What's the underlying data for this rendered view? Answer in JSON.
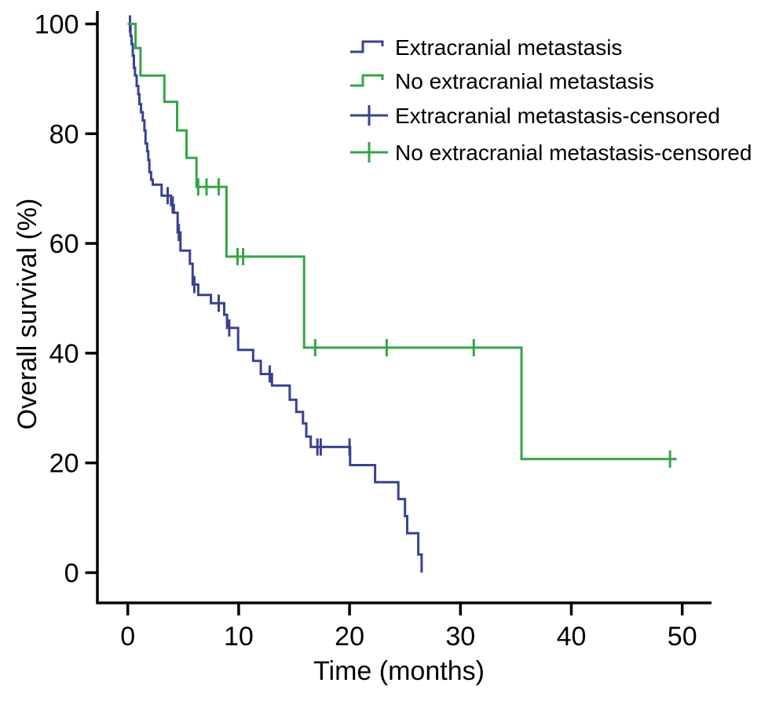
{
  "chart_data": {
    "type": "line",
    "subtype": "kaplan-meier-step-survival",
    "title": "",
    "xlabel": "Time (months)",
    "ylabel": "Overall survival (%)",
    "xlim": [
      0,
      50
    ],
    "ylim": [
      0,
      100
    ],
    "x_ticks": [
      0,
      10,
      20,
      30,
      40,
      50
    ],
    "y_ticks": [
      0,
      20,
      40,
      60,
      80,
      100
    ],
    "grid": false,
    "legend_position": "top-right",
    "axis_color": "#000000",
    "series": [
      {
        "name": "Extracranial metastasis",
        "color": "#3a428e",
        "points": [
          [
            0,
            100
          ],
          [
            0.25,
            97.8
          ],
          [
            0.35,
            96.3
          ],
          [
            0.45,
            94.2
          ],
          [
            0.55,
            92.0
          ],
          [
            0.65,
            90.6
          ],
          [
            0.8,
            88.7
          ],
          [
            0.95,
            87.2
          ],
          [
            1.05,
            85.4
          ],
          [
            1.2,
            83.9
          ],
          [
            1.35,
            82.4
          ],
          [
            1.5,
            80.6
          ],
          [
            1.6,
            78.2
          ],
          [
            1.75,
            76.8
          ],
          [
            1.85,
            75.2
          ],
          [
            1.95,
            73.0
          ],
          [
            2.1,
            71.6
          ],
          [
            2.25,
            70.7
          ],
          [
            3.05,
            68.7
          ],
          [
            3.9,
            67.0
          ],
          [
            4.15,
            65.6
          ],
          [
            4.5,
            62.0
          ],
          [
            4.75,
            58.7
          ],
          [
            5.6,
            56.3
          ],
          [
            5.85,
            52.5
          ],
          [
            6.35,
            50.6
          ],
          [
            7.5,
            49.1
          ],
          [
            8.7,
            47.0
          ],
          [
            8.95,
            44.6
          ],
          [
            9.95,
            40.6
          ],
          [
            11.3,
            38.6
          ],
          [
            12.0,
            36.2
          ],
          [
            13.0,
            34.1
          ],
          [
            14.6,
            31.5
          ],
          [
            15.2,
            29.3
          ],
          [
            15.8,
            27.2
          ],
          [
            16.1,
            24.8
          ],
          [
            16.5,
            22.9
          ],
          [
            20.05,
            19.6
          ],
          [
            22.3,
            16.5
          ],
          [
            24.4,
            13.4
          ],
          [
            25.0,
            10.3
          ],
          [
            25.2,
            7.2
          ],
          [
            26.2,
            3.3
          ],
          [
            26.5,
            0
          ]
        ],
        "censored": [
          [
            0.2,
            100
          ],
          [
            3.6,
            68.7
          ],
          [
            4.05,
            67.0
          ],
          [
            4.6,
            62.0
          ],
          [
            6.0,
            52.5
          ],
          [
            8.2,
            49.1
          ],
          [
            9.15,
            44.6
          ],
          [
            12.8,
            36.2
          ],
          [
            17.1,
            22.9
          ],
          [
            17.4,
            22.9
          ],
          [
            20.0,
            22.9
          ]
        ]
      },
      {
        "name": "No extracranial metastasis",
        "color": "#36a449",
        "points": [
          [
            0,
            100
          ],
          [
            0.7,
            95.6
          ],
          [
            1.15,
            90.6
          ],
          [
            3.3,
            85.8
          ],
          [
            4.45,
            80.6
          ],
          [
            5.3,
            75.6
          ],
          [
            6.2,
            70.3
          ],
          [
            8.9,
            57.6
          ],
          [
            15.9,
            41.0
          ],
          [
            35.5,
            20.7
          ],
          [
            49.5,
            20.7
          ]
        ],
        "censored": [
          [
            6.35,
            70.3
          ],
          [
            7.1,
            70.3
          ],
          [
            8.2,
            70.3
          ],
          [
            9.9,
            57.6
          ],
          [
            10.4,
            57.6
          ],
          [
            16.9,
            41.0
          ],
          [
            23.35,
            41.0
          ],
          [
            31.2,
            41.0
          ],
          [
            48.9,
            20.7
          ]
        ]
      }
    ],
    "legend": [
      {
        "label": "Extracranial metastasis",
        "symbol": "step",
        "color": "#3a428e"
      },
      {
        "label": "No extracranial metastasis",
        "symbol": "step",
        "color": "#36a449"
      },
      {
        "label": "Extracranial metastasis-censored",
        "symbol": "plus",
        "color": "#3a428e"
      },
      {
        "label": "No extracranial metastasis-censored",
        "symbol": "plus",
        "color": "#36a449"
      }
    ]
  }
}
